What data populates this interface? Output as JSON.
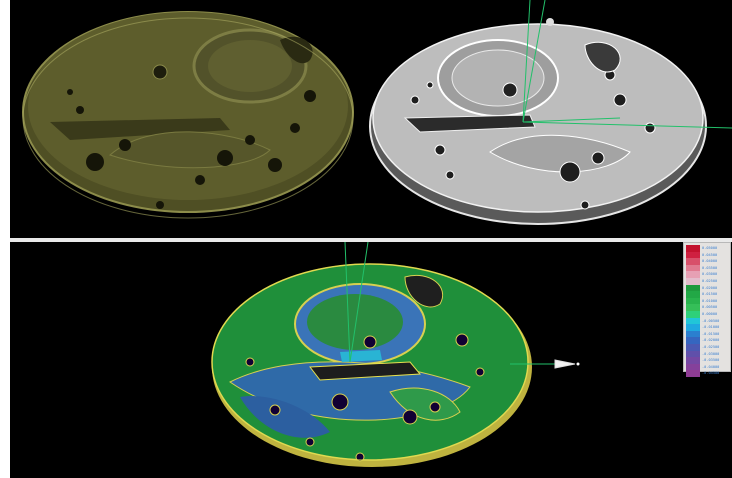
{
  "legend": {
    "entries": [
      {
        "label": "0.05000",
        "color": "#c3122e"
      },
      {
        "label": "0.04500",
        "color": "#cf2040"
      },
      {
        "label": "0.04000",
        "color": "#d8506a"
      },
      {
        "label": "0.03500",
        "color": "#e07a90"
      },
      {
        "label": "0.03000",
        "color": "#e6a0b4"
      },
      {
        "label": "0.02500",
        "color": "#e3bccc"
      },
      {
        "label": "0.02000",
        "color": "#1f9a3e"
      },
      {
        "label": "0.01500",
        "color": "#22a846"
      },
      {
        "label": "0.01000",
        "color": "#29b34d"
      },
      {
        "label": "0.00500",
        "color": "#35bf58"
      },
      {
        "label": "0.00000",
        "color": "#2ed07a"
      },
      {
        "label": "-0.00500",
        "color": "#21c6d8"
      },
      {
        "label": "-0.01000",
        "color": "#1fa9e0"
      },
      {
        "label": "-0.01500",
        "color": "#2b7fcf"
      },
      {
        "label": "-0.02000",
        "color": "#3566c0"
      },
      {
        "label": "-0.02500",
        "color": "#4b59b3"
      },
      {
        "label": "-0.03000",
        "color": "#6050aa"
      },
      {
        "label": "-0.03500",
        "color": "#7448a3"
      },
      {
        "label": "-0.04000",
        "color": "#85419b"
      },
      {
        "label": "-0.04500",
        "color": "#8f3c94"
      }
    ]
  },
  "colors": {
    "background": "#000000",
    "plate_olive": "#5a5a2a",
    "plate_white": "#d9d9d9",
    "plate_green": "#1e8f3a",
    "plate_blue": "#2f6fa8",
    "axis_green": "#22c06a"
  }
}
